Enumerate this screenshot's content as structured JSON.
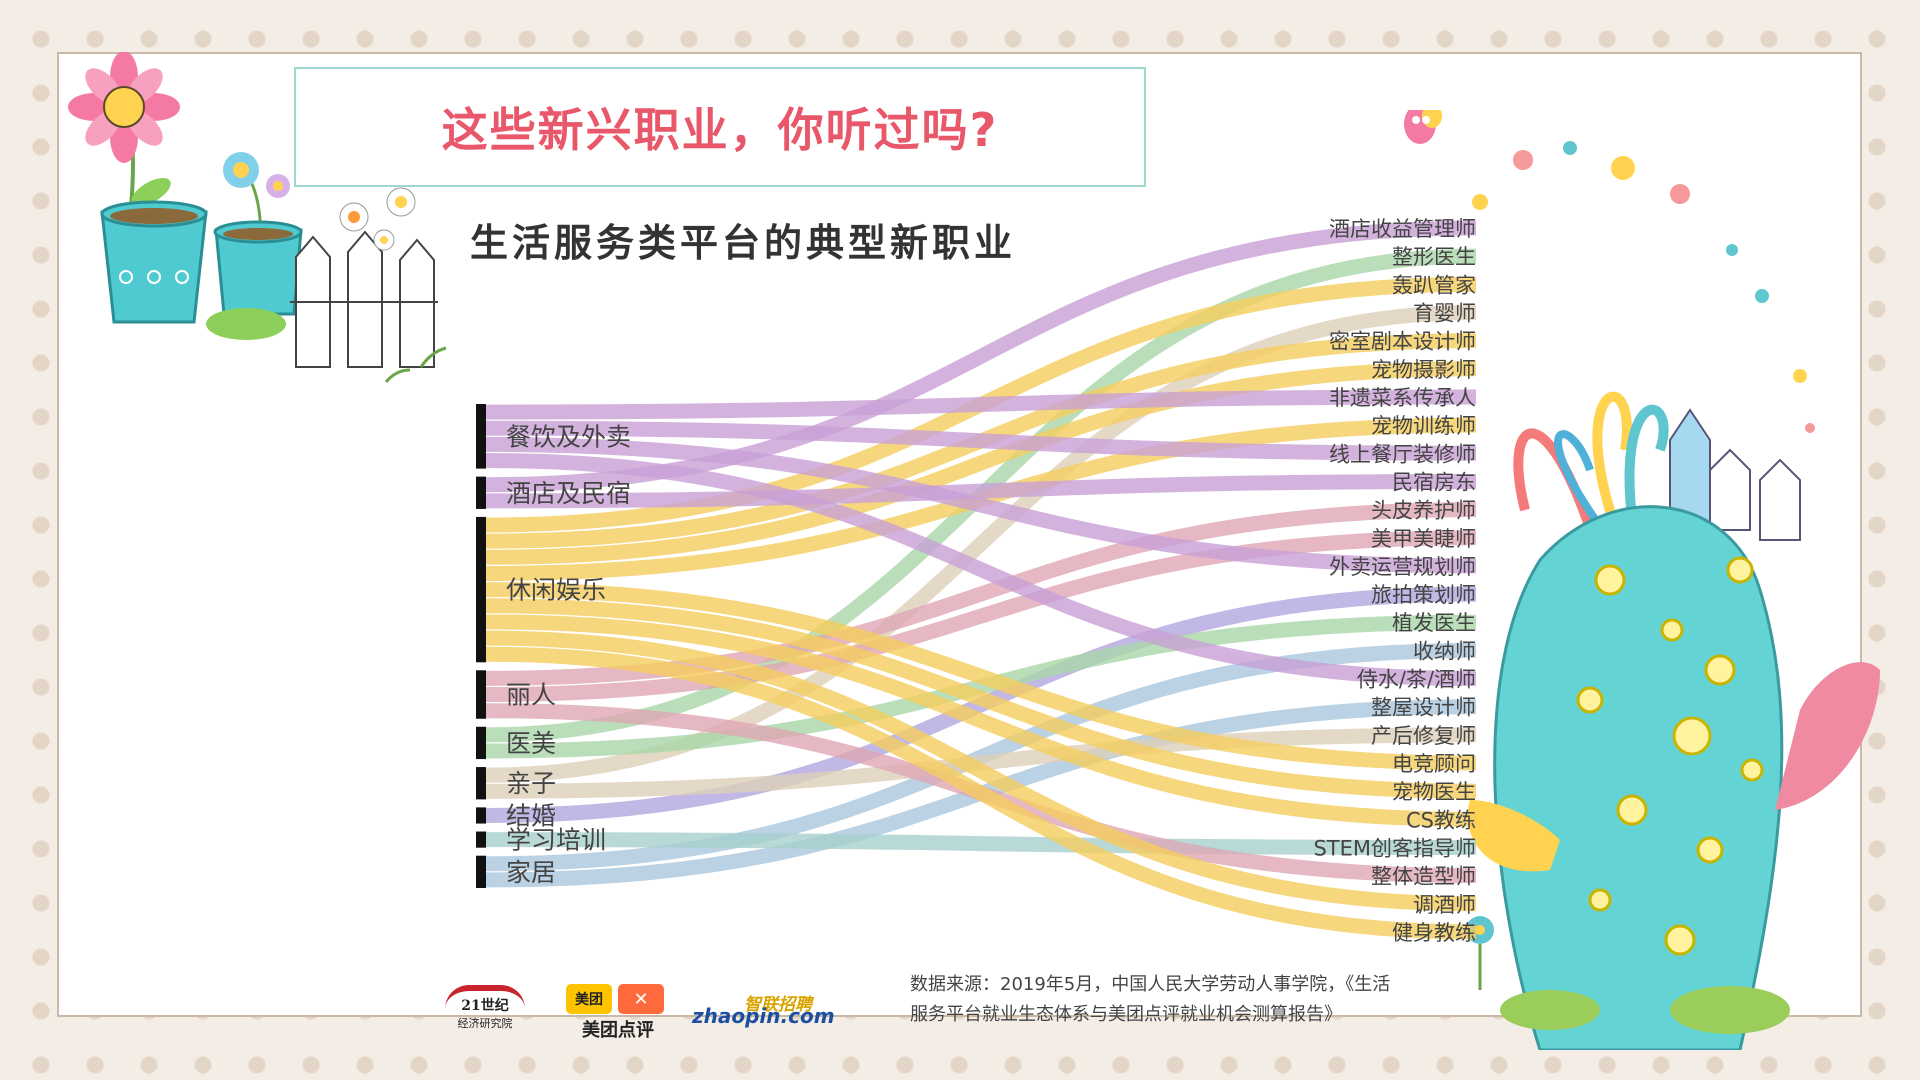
{
  "title": "这些新兴职业，你听过吗?",
  "subtitle": "生活服务类平台的典型新职业",
  "source_note": "数据来源：2019年5月，中国人民大学劳动人事学院，《生活服务平台就业生态体系与美团点评就业机会测算报告》",
  "logos": {
    "logo_21_line1": "21世纪",
    "logo_21_line2": "经济研究院",
    "meituan_box1": "美团",
    "meituan_caption": "美团点评",
    "zhaopin_cn": "智联招聘",
    "zhaopin_en": "zhaopin.com"
  },
  "colors": {
    "title": "#e9576a",
    "categories": {
      "餐饮及外卖": "#c8a0d6",
      "酒店及民宿": "#c8a0d6",
      "休闲娱乐": "#f5cd5e",
      "丽人": "#dfa6b4",
      "医美": "#a9d6a8",
      "亲子": "#ddd0b8",
      "结婚": "#b3a6df",
      "学习培训": "#a6d0cc",
      "家居": "#a9c7dc"
    }
  },
  "chart_data": {
    "type": "sankey",
    "sources": [
      "餐饮及外卖",
      "酒店及民宿",
      "休闲娱乐",
      "丽人",
      "医美",
      "亲子",
      "结婚",
      "学习培训",
      "家居"
    ],
    "targets": [
      "酒店收益管理师",
      "整形医生",
      "轰趴管家",
      "育婴师",
      "密室剧本设计师",
      "宠物摄影师",
      "非遗菜系传承人",
      "宠物训练师",
      "线上餐厅装修师",
      "民宿房东",
      "头皮养护师",
      "美甲美睫师",
      "外卖运营规划师",
      "旅拍策划师",
      "植发医生",
      "收纳师",
      "侍水/茶/酒师",
      "整屋设计师",
      "产后修复师",
      "电竞顾问",
      "宠物医生",
      "CS教练",
      "STEM创客指导师",
      "整体造型师",
      "调酒师",
      "健身教练"
    ],
    "links": [
      {
        "source": "酒店及民宿",
        "target": "酒店收益管理师"
      },
      {
        "source": "医美",
        "target": "整形医生"
      },
      {
        "source": "休闲娱乐",
        "target": "轰趴管家"
      },
      {
        "source": "亲子",
        "target": "育婴师"
      },
      {
        "source": "休闲娱乐",
        "target": "密室剧本设计师"
      },
      {
        "source": "休闲娱乐",
        "target": "宠物摄影师"
      },
      {
        "source": "餐饮及外卖",
        "target": "非遗菜系传承人"
      },
      {
        "source": "休闲娱乐",
        "target": "宠物训练师"
      },
      {
        "source": "餐饮及外卖",
        "target": "线上餐厅装修师"
      },
      {
        "source": "酒店及民宿",
        "target": "民宿房东"
      },
      {
        "source": "丽人",
        "target": "头皮养护师"
      },
      {
        "source": "丽人",
        "target": "美甲美睫师"
      },
      {
        "source": "餐饮及外卖",
        "target": "外卖运营规划师"
      },
      {
        "source": "结婚",
        "target": "旅拍策划师"
      },
      {
        "source": "医美",
        "target": "植发医生"
      },
      {
        "source": "家居",
        "target": "收纳师"
      },
      {
        "source": "餐饮及外卖",
        "target": "侍水/茶/酒师"
      },
      {
        "source": "家居",
        "target": "整屋设计师"
      },
      {
        "source": "亲子",
        "target": "产后修复师"
      },
      {
        "source": "休闲娱乐",
        "target": "电竞顾问"
      },
      {
        "source": "休闲娱乐",
        "target": "宠物医生"
      },
      {
        "source": "休闲娱乐",
        "target": "CS教练"
      },
      {
        "source": "学习培训",
        "target": "STEM创客指导师"
      },
      {
        "source": "丽人",
        "target": "整体造型师"
      },
      {
        "source": "休闲娱乐",
        "target": "调酒师"
      },
      {
        "source": "休闲娱乐",
        "target": "健身教练"
      }
    ]
  }
}
